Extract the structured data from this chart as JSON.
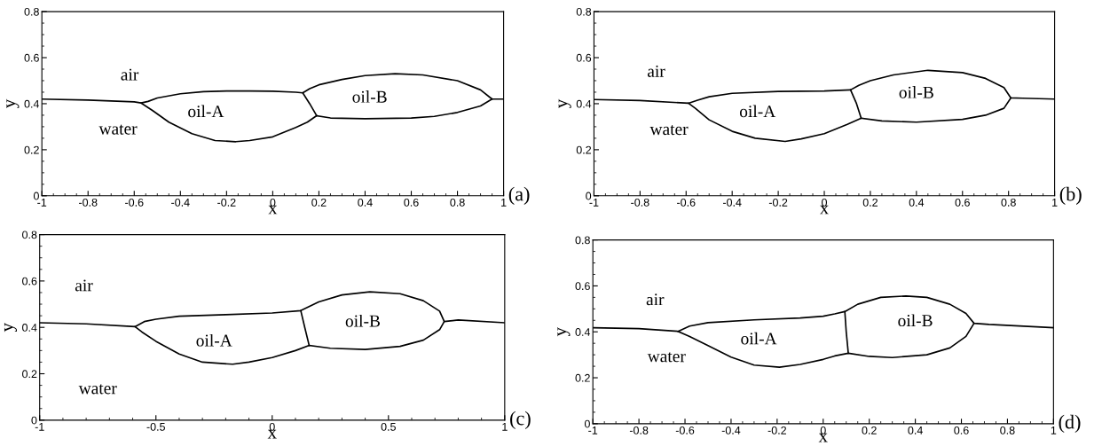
{
  "chart_data": [
    {
      "type": "line",
      "xlabel": "x",
      "ylabel": "y",
      "xlim": [
        -1,
        1
      ],
      "ylim": [
        0,
        0.8
      ],
      "xticks": [
        -1,
        -0.8,
        -0.6,
        -0.4,
        -0.2,
        0,
        0.2,
        0.4,
        0.6,
        0.8,
        1
      ],
      "yticks": [
        0,
        0.2,
        0.4,
        0.6,
        0.8
      ],
      "grid": false,
      "series": [
        {
          "color": "#000000",
          "x": [
            -1,
            -0.8,
            -0.6,
            -0.57,
            -0.54,
            -0.5,
            -0.4,
            -0.3,
            -0.2,
            -0.1,
            0,
            0.1,
            0.13,
            0.16,
            0.2,
            0.3,
            0.4,
            0.53,
            0.65,
            0.8,
            0.9,
            0.95,
            1
          ],
          "values": [
            0.42,
            0.416,
            0.408,
            0.403,
            0.41,
            0.425,
            0.443,
            0.452,
            0.455,
            0.455,
            0.454,
            0.45,
            0.447,
            0.465,
            0.482,
            0.505,
            0.522,
            0.53,
            0.525,
            0.5,
            0.46,
            0.42,
            0.42
          ]
        },
        {
          "color": "#000000",
          "x": [
            -0.57,
            -0.52,
            -0.45,
            -0.35,
            -0.25,
            -0.16,
            -0.1,
            0,
            0.1,
            0.15,
            0.19
          ],
          "values": [
            0.403,
            0.37,
            0.32,
            0.27,
            0.24,
            0.235,
            0.24,
            0.256,
            0.297,
            0.32,
            0.348
          ]
        },
        {
          "color": "#000000",
          "x": [
            0.13,
            0.16,
            0.19
          ],
          "values": [
            0.447,
            0.4,
            0.348
          ]
        },
        {
          "color": "#000000",
          "x": [
            0.19,
            0.25,
            0.4,
            0.6,
            0.7,
            0.8,
            0.9,
            0.95
          ],
          "values": [
            0.348,
            0.338,
            0.335,
            0.338,
            0.345,
            0.362,
            0.39,
            0.42
          ]
        }
      ],
      "annotations": [
        "air",
        "water",
        "oil-A",
        "oil-B",
        "(a)"
      ]
    },
    {
      "type": "line",
      "xlabel": "x",
      "ylabel": "y",
      "xlim": [
        -1,
        1
      ],
      "ylim": [
        0,
        0.8
      ],
      "xticks": [
        -1,
        -0.8,
        -0.6,
        -0.4,
        -0.2,
        0,
        0.2,
        0.4,
        0.6,
        0.8,
        1
      ],
      "yticks": [
        0,
        0.2,
        0.4,
        0.6,
        0.8
      ],
      "grid": false,
      "series": [
        {
          "color": "#000000",
          "x": [
            -1,
            -0.8,
            -0.59,
            -0.55,
            -0.5,
            -0.4,
            -0.2,
            0,
            0.114,
            0.15,
            0.2,
            0.3,
            0.45,
            0.6,
            0.7,
            0.78,
            0.81,
            0.86,
            1
          ],
          "values": [
            0.418,
            0.414,
            0.402,
            0.415,
            0.43,
            0.445,
            0.453,
            0.455,
            0.46,
            0.48,
            0.5,
            0.525,
            0.545,
            0.535,
            0.51,
            0.47,
            0.425,
            0.424,
            0.42
          ]
        },
        {
          "color": "#000000",
          "x": [
            -0.59,
            -0.56,
            -0.5,
            -0.4,
            -0.3,
            -0.17,
            -0.1,
            0,
            0.1,
            0.16
          ],
          "values": [
            0.402,
            0.38,
            0.33,
            0.28,
            0.25,
            0.236,
            0.247,
            0.27,
            0.31,
            0.337
          ]
        },
        {
          "color": "#000000",
          "x": [
            0.114,
            0.14,
            0.16
          ],
          "values": [
            0.46,
            0.4,
            0.337
          ]
        },
        {
          "color": "#000000",
          "x": [
            0.16,
            0.25,
            0.4,
            0.6,
            0.7,
            0.78,
            0.81
          ],
          "values": [
            0.337,
            0.325,
            0.32,
            0.332,
            0.35,
            0.38,
            0.425
          ]
        }
      ],
      "annotations": [
        "air",
        "water",
        "oil-A",
        "oil-B",
        "(b)"
      ]
    },
    {
      "type": "line",
      "xlabel": "x",
      "ylabel": "y",
      "xlim": [
        -1,
        1
      ],
      "ylim": [
        0,
        0.8
      ],
      "xticks": [
        -1,
        -0.5,
        0,
        0.5,
        1
      ],
      "yticks": [
        0,
        0.2,
        0.4,
        0.6,
        0.8
      ],
      "grid": false,
      "series": [
        {
          "color": "#000000",
          "x": [
            -1,
            -0.8,
            -0.59,
            -0.55,
            -0.5,
            -0.4,
            -0.2,
            0,
            0.123,
            0.2,
            0.3,
            0.42,
            0.55,
            0.65,
            0.72,
            0.74,
            0.8,
            1
          ],
          "values": [
            0.42,
            0.415,
            0.403,
            0.425,
            0.435,
            0.448,
            0.455,
            0.462,
            0.472,
            0.51,
            0.54,
            0.553,
            0.545,
            0.515,
            0.47,
            0.425,
            0.432,
            0.42
          ]
        },
        {
          "color": "#000000",
          "x": [
            -0.59,
            -0.56,
            -0.5,
            -0.4,
            -0.3,
            -0.17,
            -0.1,
            0,
            0.1,
            0.159
          ],
          "values": [
            0.403,
            0.38,
            0.34,
            0.285,
            0.25,
            0.241,
            0.25,
            0.27,
            0.3,
            0.322
          ]
        },
        {
          "color": "#000000",
          "x": [
            0.123,
            0.14,
            0.159
          ],
          "values": [
            0.472,
            0.4,
            0.322
          ]
        },
        {
          "color": "#000000",
          "x": [
            0.159,
            0.25,
            0.4,
            0.55,
            0.65,
            0.72,
            0.74
          ],
          "values": [
            0.322,
            0.31,
            0.305,
            0.318,
            0.345,
            0.39,
            0.425
          ]
        }
      ],
      "annotations": [
        "air",
        "water",
        "oil-A",
        "oil-B",
        "(c)"
      ]
    },
    {
      "type": "line",
      "xlabel": "x",
      "ylabel": "y",
      "xlim": [
        -1,
        1
      ],
      "ylim": [
        0,
        0.8
      ],
      "xticks": [
        -1,
        -0.8,
        -0.6,
        -0.4,
        -0.2,
        0,
        0.2,
        0.4,
        0.6,
        0.8,
        1
      ],
      "yticks": [
        0,
        0.2,
        0.4,
        0.6,
        0.8
      ],
      "grid": false,
      "series": [
        {
          "color": "#000000",
          "x": [
            -1,
            -0.8,
            -0.63,
            -0.58,
            -0.5,
            -0.3,
            -0.1,
            0,
            0.05,
            0.094,
            0.15,
            0.25,
            0.36,
            0.45,
            0.55,
            0.62,
            0.655,
            0.72,
            1
          ],
          "values": [
            0.418,
            0.414,
            0.402,
            0.425,
            0.44,
            0.452,
            0.46,
            0.468,
            0.478,
            0.488,
            0.52,
            0.55,
            0.556,
            0.55,
            0.52,
            0.48,
            0.437,
            0.432,
            0.418
          ]
        },
        {
          "color": "#000000",
          "x": [
            -0.63,
            -0.58,
            -0.5,
            -0.4,
            -0.3,
            -0.19,
            -0.1,
            0,
            0.05,
            0.109,
            0.2,
            0.3,
            0.45,
            0.55,
            0.62,
            0.655
          ],
          "values": [
            0.402,
            0.38,
            0.34,
            0.29,
            0.255,
            0.246,
            0.258,
            0.28,
            0.295,
            0.307,
            0.293,
            0.288,
            0.3,
            0.33,
            0.38,
            0.437
          ]
        },
        {
          "color": "#000000",
          "x": [
            0.094,
            0.1,
            0.109
          ],
          "values": [
            0.488,
            0.4,
            0.307
          ]
        }
      ],
      "annotations": [
        "air",
        "water",
        "oil-A",
        "oil-B",
        "(d)"
      ]
    }
  ]
}
